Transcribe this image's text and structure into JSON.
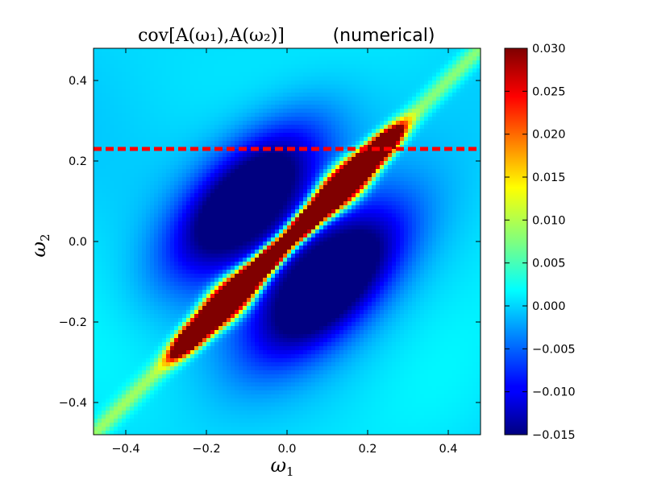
{
  "chart_data": {
    "type": "heatmap",
    "title_math": "cov[A(ω₁),A(ω₂)]",
    "title_text": "(numerical)",
    "xlabel": "ω",
    "xlabel_sub": "1",
    "ylabel": "ω",
    "ylabel_sub": "2",
    "xlim": [
      -0.48,
      0.48
    ],
    "ylim": [
      -0.48,
      0.48
    ],
    "xticks": [
      -0.4,
      -0.2,
      0.0,
      0.2,
      0.4
    ],
    "xtick_labels": [
      "−0.4",
      "−0.2",
      "0.0",
      "0.2",
      "0.4"
    ],
    "yticks": [
      -0.4,
      -0.2,
      0.0,
      0.2,
      0.4
    ],
    "ytick_labels": [
      "−0.4",
      "−0.2",
      "0.0",
      "0.2",
      "0.4"
    ],
    "colorbar": {
      "colormap": "jet",
      "vmin": -0.015,
      "vmax": 0.03,
      "ticks": [
        0.03,
        0.025,
        0.02,
        0.015,
        0.01,
        0.005,
        0.0,
        -0.005,
        -0.01,
        -0.015
      ],
      "tick_labels": [
        "0.030",
        "0.025",
        "0.020",
        "0.015",
        "0.010",
        "0.005",
        "0.000",
        "−0.005",
        "−0.010",
        "−0.015"
      ]
    },
    "hline": {
      "y": 0.23,
      "color": "#ff0000",
      "style": "dashed"
    },
    "grid": false
  }
}
